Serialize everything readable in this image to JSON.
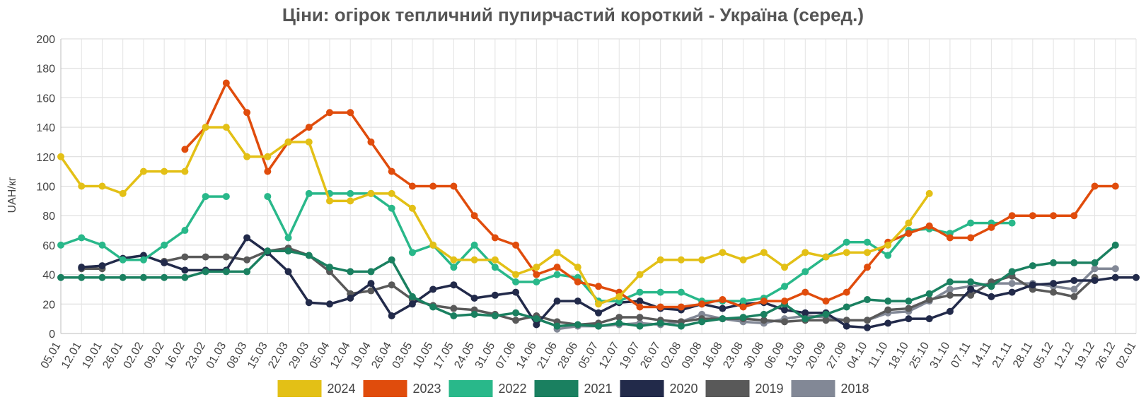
{
  "chart_data": {
    "type": "line",
    "title": "Ціни: огірок тепличний пупирчастий короткий - Україна (серед.)",
    "ylabel": "UAH/кг",
    "xlabel": "",
    "ylim": [
      0,
      200
    ],
    "yticks": [
      0,
      20,
      40,
      60,
      80,
      100,
      120,
      140,
      160,
      180,
      200
    ],
    "grid": true,
    "legend_position": "bottom",
    "categories": [
      "05.01",
      "12.01",
      "19.01",
      "26.01",
      "02.02",
      "09.02",
      "16.02",
      "23.02",
      "01.03",
      "08.03",
      "15.03",
      "22.03",
      "29.03",
      "05.04",
      "12.04",
      "19.04",
      "26.04",
      "03.05",
      "10.05",
      "17.05",
      "24.05",
      "31.05",
      "07.06",
      "14.06",
      "21.06",
      "28.06",
      "05.07",
      "12.07",
      "19.07",
      "26.07",
      "02.08",
      "09.08",
      "16.08",
      "23.08",
      "30.08",
      "06.09",
      "13.09",
      "20.09",
      "27.09",
      "04.10",
      "11.10",
      "18.10",
      "25.10",
      "31.10",
      "07.11",
      "14.11",
      "21.11",
      "28.11",
      "05.12",
      "12.12",
      "19.12",
      "26.12",
      "02.01"
    ],
    "series": [
      {
        "name": "2024",
        "color": "#e3c016",
        "values": [
          120,
          100,
          100,
          95,
          110,
          110,
          110,
          140,
          140,
          120,
          120,
          130,
          130,
          90,
          90,
          95,
          95,
          85,
          60,
          50,
          50,
          50,
          40,
          45,
          55,
          45,
          20,
          25,
          40,
          50,
          50,
          50,
          55,
          50,
          55,
          45,
          55,
          52,
          55,
          55,
          60,
          75,
          95,
          null,
          null,
          null,
          null,
          null,
          null,
          null,
          null,
          null,
          null
        ]
      },
      {
        "name": "2023",
        "color": "#e04c0c",
        "values": [
          null,
          null,
          null,
          null,
          null,
          null,
          125,
          140,
          170,
          150,
          110,
          130,
          140,
          150,
          150,
          130,
          110,
          100,
          100,
          100,
          80,
          65,
          60,
          40,
          45,
          35,
          32,
          28,
          18,
          18,
          18,
          20,
          23,
          18,
          22,
          22,
          28,
          22,
          28,
          45,
          62,
          68,
          73,
          65,
          65,
          72,
          80,
          80,
          80,
          80,
          100,
          100,
          null
        ]
      },
      {
        "name": "2022",
        "color": "#29b88a",
        "values": [
          60,
          65,
          60,
          50,
          50,
          60,
          70,
          93,
          93,
          null,
          93,
          65,
          95,
          95,
          95,
          95,
          85,
          55,
          60,
          45,
          60,
          45,
          35,
          35,
          40,
          38,
          22,
          22,
          28,
          28,
          28,
          22,
          22,
          22,
          24,
          32,
          42,
          52,
          62,
          62,
          53,
          70,
          71,
          68,
          75,
          75,
          75,
          null,
          null,
          null,
          null,
          null,
          null
        ]
      },
      {
        "name": "2021",
        "color": "#1a8060",
        "values": [
          38,
          38,
          38,
          38,
          38,
          38,
          38,
          42,
          42,
          42,
          56,
          56,
          53,
          45,
          42,
          42,
          50,
          25,
          18,
          12,
          13,
          12,
          14,
          10,
          5,
          6,
          5,
          7,
          5,
          7,
          5,
          8,
          10,
          11,
          13,
          20,
          10,
          13,
          18,
          23,
          22,
          22,
          27,
          35,
          35,
          32,
          42,
          46,
          48,
          48,
          48,
          60,
          null
        ]
      },
      {
        "name": "2020",
        "color": "#222a4a",
        "values": [
          null,
          45,
          46,
          51,
          53,
          48,
          43,
          43,
          43,
          65,
          55,
          42,
          21,
          20,
          24,
          34,
          12,
          20,
          30,
          33,
          24,
          26,
          28,
          6,
          22,
          22,
          14,
          21,
          22,
          17,
          16,
          20,
          17,
          20,
          21,
          16,
          14,
          14,
          5,
          4,
          7,
          10,
          10,
          15,
          30,
          25,
          28,
          33,
          34,
          36,
          36,
          38,
          38
        ]
      },
      {
        "name": "2019",
        "color": "#595959",
        "values": [
          null,
          44,
          44,
          null,
          null,
          49,
          52,
          52,
          52,
          50,
          56,
          58,
          53,
          42,
          27,
          29,
          33,
          23,
          19,
          17,
          16,
          13,
          9,
          12,
          8,
          6,
          7,
          11,
          11,
          9,
          8,
          10,
          10,
          10,
          9,
          8,
          9,
          9,
          9,
          9,
          16,
          17,
          23,
          26,
          26,
          35,
          39,
          30,
          28,
          25,
          38,
          null,
          null
        ]
      },
      {
        "name": "2018",
        "color": "#828896",
        "values": [
          null,
          null,
          null,
          null,
          null,
          null,
          null,
          null,
          null,
          null,
          null,
          null,
          null,
          null,
          null,
          null,
          null,
          null,
          null,
          null,
          null,
          null,
          null,
          null,
          3,
          5,
          5,
          6,
          7,
          6,
          8,
          13,
          10,
          8,
          7,
          10,
          12,
          11,
          9,
          9,
          14,
          15,
          22,
          30,
          32,
          34,
          34,
          34,
          32,
          30,
          44,
          44,
          null
        ]
      }
    ]
  }
}
